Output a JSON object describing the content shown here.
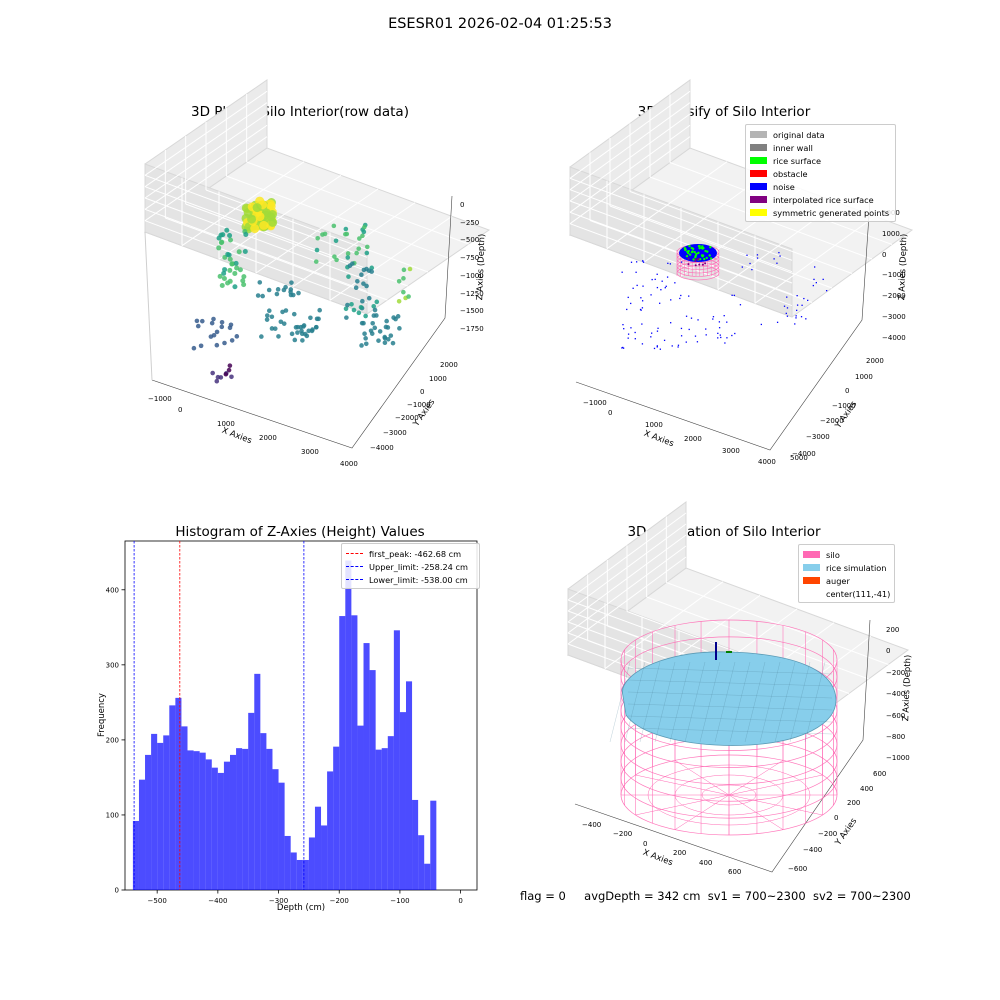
{
  "figure": {
    "suptitle": "ESESR01 2026-02-04 01:25:53",
    "footer": {
      "flag": "flag = 0",
      "avg": "avgDepth = 342 cm",
      "sv1": "sv1 = 700~2300",
      "sv2": "sv2 = 700~2300"
    }
  },
  "raw_plot": {
    "title": "3D Plot of Silo Interior(row data)",
    "xlabel": "X Axies",
    "ylabel": "Y Axies",
    "zlabel": "Z Axies (Depth)",
    "xticks": [
      "−1000",
      "0",
      "1000",
      "2000",
      "3000",
      "4000"
    ],
    "yticks": [
      "2000",
      "1000",
      "0",
      "−1000",
      "−2000",
      "−3000",
      "−4000"
    ],
    "zticks": [
      "0",
      "−250",
      "−500",
      "−750",
      "−1000",
      "−1250",
      "−1500",
      "−1750"
    ]
  },
  "classify_plot": {
    "title": "3D classify of Silo Interior",
    "xlabel": "X Axies",
    "ylabel": "Y Axies",
    "zlabel": "Z Axies (Depth)",
    "xticks": [
      "−1000",
      "0",
      "1000",
      "2000",
      "3000",
      "4000",
      "5000"
    ],
    "yticks": [
      "2000",
      "1000",
      "0",
      "−1000",
      "−2000",
      "−3000",
      "−4000"
    ],
    "zticks": [
      "2000",
      "1000",
      "0",
      "−1000",
      "−2000",
      "−3000",
      "−4000"
    ],
    "legend": [
      {
        "label": "original data",
        "color": "#b4b4b4"
      },
      {
        "label": "inner wall",
        "color": "#808080"
      },
      {
        "label": "rice surface",
        "color": "#00ff00"
      },
      {
        "label": "obstacle",
        "color": "#ff0000"
      },
      {
        "label": "noise",
        "color": "#0000ff"
      },
      {
        "label": "interpolated rice surface",
        "color": "#800080"
      },
      {
        "label": "symmetric generated points",
        "color": "#ffff00"
      }
    ]
  },
  "simulation_plot": {
    "title": "3D simulation of Silo Interior",
    "xlabel": "X Axies",
    "ylabel": "Y Axies",
    "zlabel": "Z Axies (Depth)",
    "xticks": [
      "−400",
      "−200",
      "0",
      "200",
      "400",
      "600"
    ],
    "yticks": [
      "600",
      "400",
      "200",
      "0",
      "−200",
      "−400",
      "−600"
    ],
    "zticks": [
      "200",
      "0",
      "−200",
      "−400",
      "−600",
      "−800",
      "−1000"
    ],
    "legend": [
      {
        "label": "silo",
        "color": "#ff69b4"
      },
      {
        "label": "rice simulation",
        "color": "#87ceeb"
      },
      {
        "label": "auger",
        "color": "#ff4500"
      },
      {
        "label": "center(111,-41)",
        "color": ""
      }
    ]
  },
  "chart_data": {
    "type": "bar",
    "title": "Histogram of Z-Axies (Height) Values",
    "xlabel": "Depth (cm)",
    "ylabel": "Frequency",
    "xlim": [
      -553,
      27
    ],
    "ylim": [
      0,
      465
    ],
    "xticks": [
      -500,
      -400,
      -300,
      -200,
      -100,
      0
    ],
    "yticks": [
      0,
      100,
      200,
      300,
      400
    ],
    "bar_color": "#0000ff",
    "bin_start": -540,
    "bin_width": 10,
    "values": [
      92,
      147,
      180,
      208,
      196,
      206,
      246,
      256,
      218,
      186,
      185,
      183,
      174,
      163,
      156,
      171,
      180,
      189,
      188,
      236,
      288,
      209,
      188,
      161,
      143,
      72,
      50,
      40,
      40,
      70,
      111,
      86,
      158,
      191,
      365,
      439,
      366,
      219,
      329,
      293,
      187,
      189,
      205,
      346,
      237,
      278,
      120,
      73,
      35,
      119
    ],
    "vlines": [
      {
        "label": "first_peak: -462.68 cm",
        "x": -462.68,
        "color": "#ff0000"
      },
      {
        "label": "Upper_limit: -258.24 cm",
        "x": -258.24,
        "color": "#0000ff"
      },
      {
        "label": "Lower_limit: -538.00 cm",
        "x": -538.0,
        "color": "#0000ff"
      }
    ]
  }
}
